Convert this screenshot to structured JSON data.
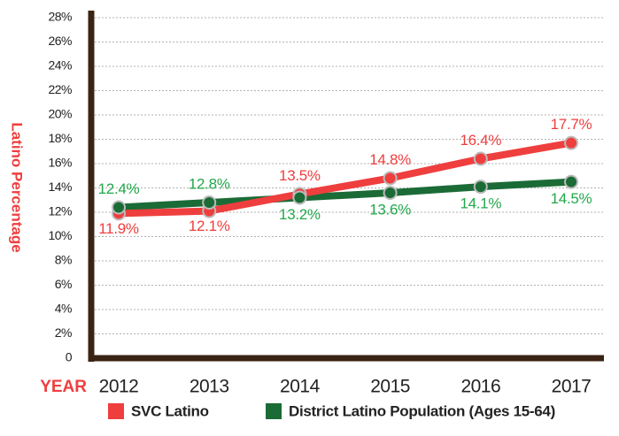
{
  "chart_data": {
    "type": "line",
    "y_label": "Latino Percentage",
    "x_label": "YEAR",
    "categories": [
      "2012",
      "2013",
      "2014",
      "2015",
      "2016",
      "2017"
    ],
    "series": [
      {
        "name": "SVC Latino",
        "color": "#ef3e3e",
        "values": [
          11.9,
          12.1,
          13.5,
          14.8,
          16.4,
          17.7
        ],
        "value_labels": [
          "11.9%",
          "12.1%",
          "13.5%",
          "14.8%",
          "16.4%",
          "17.7%"
        ]
      },
      {
        "name": "District Latino Population (Ages 15-64)",
        "color": "#1b6b36",
        "label_color": "#22a84a",
        "values": [
          12.4,
          12.8,
          13.2,
          13.6,
          14.1,
          14.5
        ],
        "value_labels": [
          "12.4%",
          "12.8%",
          "13.2%",
          "13.6%",
          "14.1%",
          "14.5%"
        ]
      }
    ],
    "ylim": [
      0,
      28
    ],
    "yticks": [
      0,
      {
        "value": 2,
        "label": "2%"
      },
      {
        "value": 4,
        "label": "4%"
      },
      {
        "value": 6,
        "label": "6%"
      },
      {
        "value": 8,
        "label": "8%"
      },
      {
        "value": 10,
        "label": "10%"
      },
      {
        "value": 12,
        "label": "12%"
      },
      {
        "value": 14,
        "label": "14%"
      },
      {
        "value": 16,
        "label": "16%"
      },
      {
        "value": 18,
        "label": "18%"
      },
      {
        "value": 20,
        "label": "20%"
      },
      {
        "value": 22,
        "label": "22%"
      },
      {
        "value": 24,
        "label": "24%"
      },
      {
        "value": 26,
        "label": "26%"
      },
      {
        "value": 28,
        "label": "28%"
      }
    ],
    "grid": true,
    "legend": "bottom"
  }
}
